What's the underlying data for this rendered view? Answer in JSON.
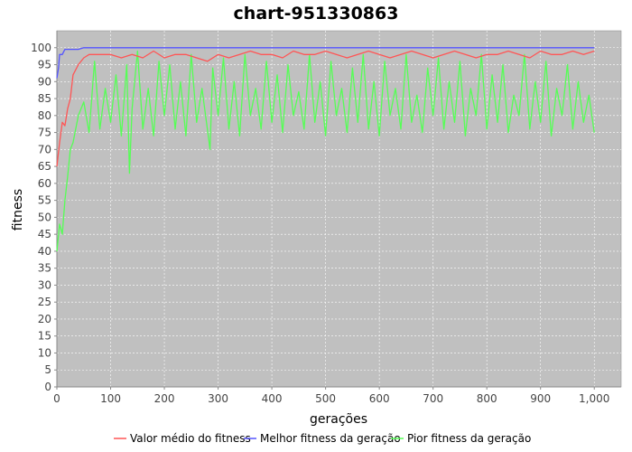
{
  "chart_data": {
    "type": "line",
    "title": "chart-951330863",
    "xlabel": "gerações",
    "ylabel": "fitness",
    "xlim": [
      0,
      1050
    ],
    "ylim": [
      0,
      105
    ],
    "x_ticks": [
      "0",
      "100",
      "200",
      "300",
      "400",
      "500",
      "600",
      "700",
      "800",
      "900",
      "1,000"
    ],
    "y_ticks": [
      "0",
      "5",
      "10",
      "15",
      "20",
      "25",
      "30",
      "35",
      "40",
      "45",
      "50",
      "55",
      "60",
      "65",
      "70",
      "75",
      "80",
      "85",
      "90",
      "95",
      "100"
    ],
    "grid": true,
    "legend_position": "bottom",
    "series": [
      {
        "name": "Valor médio do fitness",
        "color": "#ff5555",
        "x": [
          0,
          5,
          10,
          15,
          20,
          25,
          30,
          40,
          50,
          60,
          80,
          100,
          120,
          140,
          160,
          180,
          200,
          220,
          240,
          260,
          280,
          300,
          320,
          340,
          360,
          380,
          400,
          420,
          440,
          460,
          480,
          500,
          520,
          540,
          560,
          580,
          600,
          620,
          640,
          660,
          680,
          700,
          720,
          740,
          760,
          780,
          800,
          820,
          840,
          860,
          880,
          900,
          920,
          940,
          960,
          980,
          1000
        ],
        "values": [
          65,
          72,
          78,
          77,
          82,
          85,
          92,
          95,
          97,
          98,
          98,
          98,
          97,
          98,
          97,
          99,
          97,
          98,
          98,
          97,
          96,
          98,
          97,
          98,
          99,
          98,
          98,
          97,
          99,
          98,
          98,
          99,
          98,
          97,
          98,
          99,
          98,
          97,
          98,
          99,
          98,
          97,
          98,
          99,
          98,
          97,
          98,
          98,
          99,
          98,
          97,
          99,
          98,
          98,
          99,
          98,
          99
        ]
      },
      {
        "name": "Melhor fitness da geração",
        "color": "#5555ff",
        "x": [
          0,
          3,
          5,
          10,
          15,
          20,
          40,
          50,
          100,
          200,
          300,
          400,
          500,
          600,
          700,
          800,
          900,
          1000
        ],
        "values": [
          91,
          94,
          98,
          98,
          99.5,
          99.5,
          99.5,
          100,
          100,
          100,
          100,
          100,
          100,
          100,
          100,
          100,
          100,
          100
        ]
      },
      {
        "name": "Pior fitness da geração",
        "color": "#55ff55",
        "x": [
          0,
          5,
          10,
          15,
          20,
          25,
          30,
          40,
          50,
          60,
          70,
          80,
          90,
          100,
          110,
          120,
          130,
          135,
          140,
          150,
          160,
          170,
          180,
          190,
          200,
          210,
          220,
          230,
          240,
          250,
          260,
          270,
          280,
          285,
          290,
          300,
          310,
          320,
          330,
          340,
          350,
          360,
          370,
          380,
          390,
          400,
          410,
          420,
          430,
          440,
          450,
          460,
          470,
          480,
          490,
          500,
          510,
          520,
          530,
          540,
          550,
          560,
          570,
          580,
          590,
          600,
          610,
          620,
          630,
          640,
          650,
          660,
          670,
          680,
          690,
          700,
          710,
          720,
          730,
          740,
          750,
          760,
          770,
          780,
          790,
          800,
          810,
          820,
          830,
          840,
          850,
          860,
          870,
          880,
          890,
          900,
          910,
          920,
          930,
          940,
          950,
          960,
          970,
          980,
          990,
          1000
        ],
        "values": [
          40,
          48,
          45,
          55,
          62,
          70,
          72,
          80,
          84,
          75,
          96,
          76,
          88,
          78,
          92,
          74,
          95,
          63,
          82,
          99,
          76,
          88,
          74,
          96,
          80,
          95,
          76,
          90,
          74,
          98,
          78,
          88,
          76,
          70,
          94,
          80,
          97,
          76,
          90,
          74,
          98,
          80,
          88,
          76,
          96,
          78,
          92,
          75,
          95,
          80,
          87,
          76,
          98,
          78,
          90,
          74,
          96,
          80,
          88,
          75,
          94,
          78,
          98,
          76,
          90,
          74,
          96,
          80,
          88,
          76,
          98,
          78,
          86,
          75,
          94,
          80,
          97,
          76,
          90,
          78,
          96,
          74,
          88,
          80,
          98,
          76,
          92,
          78,
          95,
          75,
          86,
          80,
          98,
          76,
          90,
          78,
          96,
          74,
          88,
          80,
          95,
          76,
          90,
          78,
          86,
          75
        ]
      }
    ]
  }
}
